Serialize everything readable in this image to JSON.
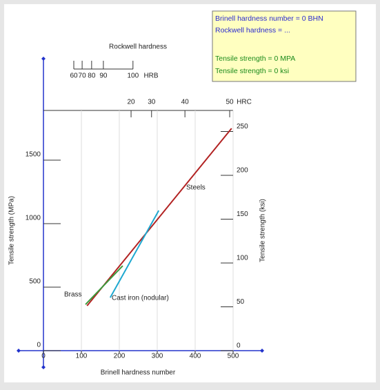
{
  "chart_data": {
    "type": "line",
    "x_label": "Brinell hardness number",
    "y_label": "Tensile strength (MPa)",
    "y2_label": "Tensile strength (ksi)",
    "top_label": "Rockwell hardness",
    "xlim": [
      0,
      500
    ],
    "xticks": [
      0,
      100,
      200,
      300,
      400,
      500
    ],
    "ylim": [
      0,
      1891
    ],
    "yticks": [
      0,
      500,
      1000,
      1500
    ],
    "y2lim": [
      0,
      274
    ],
    "y2ticks": [
      0,
      50,
      100,
      150,
      200,
      250
    ],
    "hrc_unit": "HRC",
    "hrc_ticks": [
      20,
      30,
      40,
      50
    ],
    "hrc_bhn_equivalents": [
      231,
      285,
      373,
      491
    ],
    "hrb_unit": "HRB",
    "hrb_ticks": [
      60,
      70,
      80,
      90,
      100
    ],
    "hrb_bhn_equivalents": [
      80,
      102,
      127,
      158,
      236
    ],
    "grid": true,
    "series": [
      {
        "name": "Steels",
        "color": "#b22222",
        "x": [
          115,
          496
        ],
        "values": [
          353,
          1750
        ]
      },
      {
        "name": "Brass",
        "color": "#3c9a3c",
        "x": [
          111,
          209
        ],
        "values": [
          364,
          668
        ]
      },
      {
        "name": "Cast iron (nodular)",
        "color": "#1ea8d0",
        "x": [
          176,
          304
        ],
        "values": [
          418,
          1103
        ]
      }
    ]
  },
  "readout": {
    "brinell": "Brinell hardness number = 0 BHN",
    "rockwell": "Rockwell hardness = ...",
    "tensile_mpa": "Tensile strength = 0 MPA",
    "tensile_ksi": "Tensile strength = 0 ksi"
  }
}
